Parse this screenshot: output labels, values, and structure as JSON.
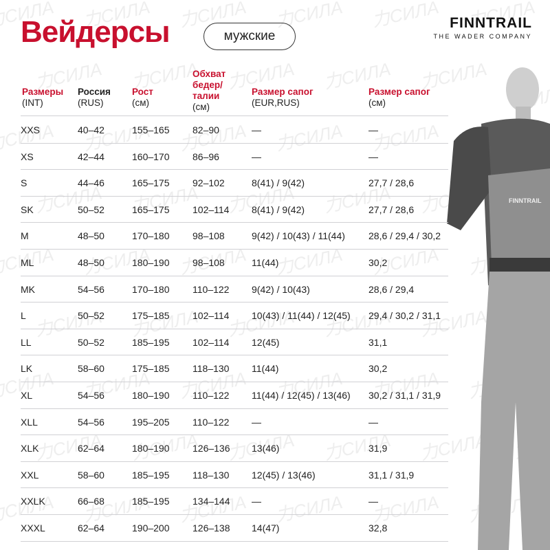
{
  "header": {
    "title": "Вейдерсы",
    "tag": "мужские",
    "brand": "FINNTRAIL",
    "brand_tagline": "THE WADER COMPANY",
    "watermark": "力СИЛА"
  },
  "columns": [
    {
      "label": "Размеры",
      "unit": "(INT)",
      "color": "#c8102e"
    },
    {
      "label": "Россия",
      "unit": "(RUS)",
      "color": "#222222"
    },
    {
      "label": "Рост",
      "unit": "(см)",
      "color": "#c8102e"
    },
    {
      "label": "Обхват бедер/ талии",
      "unit": "(см)",
      "color": "#c8102e"
    },
    {
      "label": "Размер сапог",
      "unit": "(EUR,RUS)",
      "color": "#c8102e"
    },
    {
      "label": "Размер сапог",
      "unit": "(см)",
      "color": "#c8102e"
    }
  ],
  "rows": [
    [
      "XXS",
      "40–42",
      "155–165",
      "82–90",
      "—",
      "—"
    ],
    [
      "XS",
      "42–44",
      "160–170",
      "86–96",
      "—",
      "—"
    ],
    [
      "S",
      "44–46",
      "165–175",
      "92–102",
      "8(41) / 9(42)",
      "27,7 / 28,6"
    ],
    [
      "SK",
      "50–52",
      "165–175",
      "102–114",
      "8(41) / 9(42)",
      "27,7 / 28,6"
    ],
    [
      "M",
      "48–50",
      "170–180",
      "98–108",
      "9(42) / 10(43) / 11(44)",
      "28,6 / 29,4 / 30,2"
    ],
    [
      "ML",
      "48–50",
      "180–190",
      "98–108",
      "11(44)",
      "30,2"
    ],
    [
      "MK",
      "54–56",
      "170–180",
      "110–122",
      "9(42) / 10(43)",
      "28,6 / 29,4"
    ],
    [
      "L",
      "50–52",
      "175–185",
      "102–114",
      "10(43) / 11(44) / 12(45)",
      "29,4 / 30,2 / 31,1"
    ],
    [
      "LL",
      "50–52",
      "185–195",
      "102–114",
      "12(45)",
      "31,1"
    ],
    [
      "LK",
      "58–60",
      "175–185",
      "118–130",
      "11(44)",
      "30,2"
    ],
    [
      "XL",
      "54–56",
      "180–190",
      "110–122",
      "11(44) / 12(45) / 13(46)",
      "30,2 / 31,1 / 31,9"
    ],
    [
      "XLL",
      "54–56",
      "195–205",
      "110–122",
      "—",
      "—"
    ],
    [
      "XLK",
      "62–64",
      "180–190",
      "126–136",
      "13(46)",
      "31,9"
    ],
    [
      "XXL",
      "58–60",
      "185–195",
      "118–130",
      "12(45) / 13(46)",
      "31,1 / 31,9"
    ],
    [
      "XXLK",
      "66–68",
      "185–195",
      "134–144",
      "—",
      "—"
    ],
    [
      "XXXL",
      "62–64",
      "190–200",
      "126–138",
      "14(47)",
      "32,8"
    ]
  ]
}
